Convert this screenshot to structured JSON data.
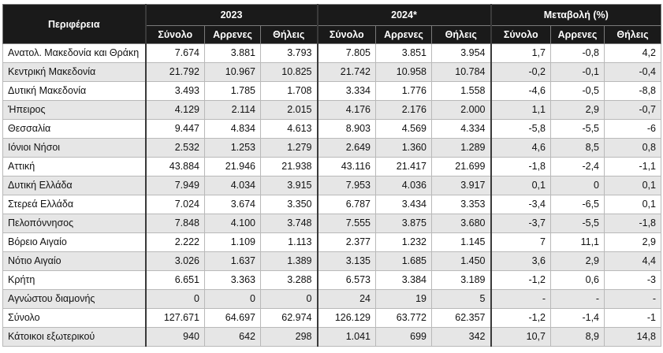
{
  "header": {
    "region_label": "Περιφέρεια",
    "groups": [
      "2023",
      "2024*",
      "Μεταβολή (%)"
    ],
    "subheaders": [
      "Σύνολο",
      "Αρρενες",
      "Θήλεις",
      "Σύνολο",
      "Αρρενες",
      "Θήλεις",
      "Σύνολο",
      "Αρρενες",
      "Θήλεις"
    ]
  },
  "rows": [
    {
      "region": "Ανατολ. Μακεδονία και Θράκη",
      "values": [
        "7.674",
        "3.881",
        "3.793",
        "7.805",
        "3.851",
        "3.954",
        "1,7",
        "-0,8",
        "4,2"
      ]
    },
    {
      "region": "Κεντρική Μακεδονία",
      "values": [
        "21.792",
        "10.967",
        "10.825",
        "21.742",
        "10.958",
        "10.784",
        "-0,2",
        "-0,1",
        "-0,4"
      ]
    },
    {
      "region": "Δυτική Μακεδονία",
      "values": [
        "3.493",
        "1.785",
        "1.708",
        "3.334",
        "1.776",
        "1.558",
        "-4,6",
        "-0,5",
        "-8,8"
      ]
    },
    {
      "region": "Ήπειρος",
      "values": [
        "4.129",
        "2.114",
        "2.015",
        "4.176",
        "2.176",
        "2.000",
        "1,1",
        "2,9",
        "-0,7"
      ]
    },
    {
      "region": "Θεσσαλία",
      "values": [
        "9.447",
        "4.834",
        "4.613",
        "8.903",
        "4.569",
        "4.334",
        "-5,8",
        "-5,5",
        "-6"
      ]
    },
    {
      "region": "Ιόνιοι Νήσοι",
      "values": [
        "2.532",
        "1.253",
        "1.279",
        "2.649",
        "1.360",
        "1.289",
        "4,6",
        "8,5",
        "0,8"
      ]
    },
    {
      "region": "Αττική",
      "values": [
        "43.884",
        "21.946",
        "21.938",
        "43.116",
        "21.417",
        "21.699",
        "-1,8",
        "-2,4",
        "-1,1"
      ]
    },
    {
      "region": "Δυτική Ελλάδα",
      "values": [
        "7.949",
        "4.034",
        "3.915",
        "7.953",
        "4.036",
        "3.917",
        "0,1",
        "0",
        "0,1"
      ]
    },
    {
      "region": "Στερεά Ελλάδα",
      "values": [
        "7.024",
        "3.674",
        "3.350",
        "6.787",
        "3.434",
        "3.353",
        "-3,4",
        "-6,5",
        "0,1"
      ]
    },
    {
      "region": "Πελοπόννησος",
      "values": [
        "7.848",
        "4.100",
        "3.748",
        "7.555",
        "3.875",
        "3.680",
        "-3,7",
        "-5,5",
        "-1,8"
      ]
    },
    {
      "region": "Βόρειο Αιγαίο",
      "values": [
        "2.222",
        "1.109",
        "1.113",
        "2.377",
        "1.232",
        "1.145",
        "7",
        "11,1",
        "2,9"
      ]
    },
    {
      "region": "Νότιο Αιγαίο",
      "values": [
        "3.026",
        "1.637",
        "1.389",
        "3.135",
        "1.685",
        "1.450",
        "3,6",
        "2,9",
        "4,4"
      ]
    },
    {
      "region": "Κρήτη",
      "values": [
        "6.651",
        "3.363",
        "3.288",
        "6.573",
        "3.384",
        "3.189",
        "-1,2",
        "0,6",
        "-3"
      ]
    },
    {
      "region": "Αγνώστου διαμονής",
      "values": [
        "0",
        "0",
        "0",
        "24",
        "19",
        "5",
        "-",
        "-",
        "-"
      ]
    },
    {
      "region": "Σύνολο",
      "values": [
        "127.671",
        "64.697",
        "62.974",
        "126.129",
        "63.772",
        "62.357",
        "-1,2",
        "-1,4",
        "-1"
      ]
    },
    {
      "region": "Κάτοικοι εξωτερικού",
      "values": [
        "940",
        "642",
        "298",
        "1.041",
        "699",
        "342",
        "10,7",
        "8,9",
        "14,8"
      ]
    }
  ]
}
